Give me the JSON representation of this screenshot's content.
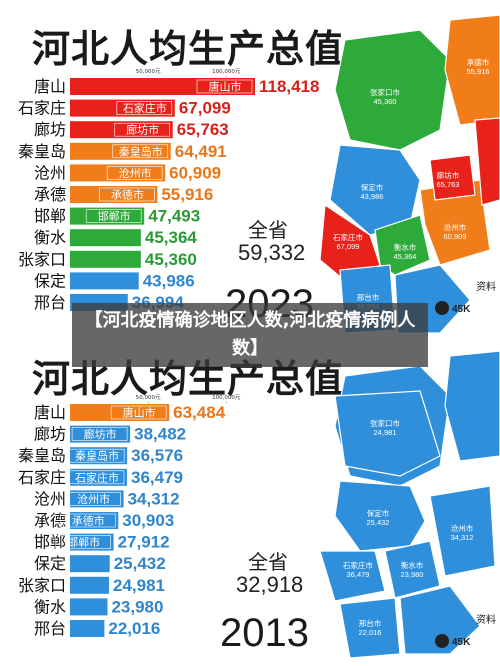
{
  "overlay_title": "【河北疫情确诊地区人数,河北疫情病例人数】",
  "chart_data": [
    {
      "type": "bar",
      "title": "河北人均生产总值",
      "year": "2023",
      "total_label": "全省",
      "total_value": "59,332",
      "scale_labels": [
        "50,000元",
        "100,000元"
      ],
      "categories": [
        "唐山",
        "石家庄",
        "廊坊",
        "秦皇岛",
        "沧州",
        "承德",
        "邯郸",
        "衡水",
        "张家口",
        "保定",
        "邢台"
      ],
      "values": [
        118418,
        67099,
        65763,
        64491,
        60909,
        55916,
        47493,
        45364,
        45360,
        43986,
        36994
      ],
      "value_labels": [
        "118,418",
        "67,099",
        "65,763",
        "64,491",
        "60,909",
        "55,916",
        "47,493",
        "45,364",
        "45,360",
        "43,986",
        "36,994"
      ],
      "bar_labels": [
        "唐山市",
        "石家庄市",
        "廊坊市",
        "秦皇岛市",
        "沧州市",
        "承德市",
        "邯郸市",
        "",
        "",
        "",
        ""
      ],
      "colors": [
        "#e8221b",
        "#e8221b",
        "#e8221b",
        "#f07d1a",
        "#f07d1a",
        "#f07d1a",
        "#2eaa3a",
        "#2eaa3a",
        "#2eaa3a",
        "#2f8fdb",
        "#2f8fdb"
      ],
      "value_colors": [
        "#d4221b",
        "#d4221b",
        "#d4221b",
        "#e8761a",
        "#e8761a",
        "#e8761a",
        "#2a9a35",
        "#2a9a35",
        "#2a9a35",
        "#2f86cf",
        "#2f86cf"
      ],
      "map_labels": [
        {
          "name": "张家口市",
          "value": "45,360"
        },
        {
          "name": "保定市",
          "value": "43,986"
        },
        {
          "name": "石家庄市",
          "value": "67,099"
        },
        {
          "name": "衡水市",
          "value": "45,364"
        },
        {
          "name": "沧州市",
          "value": "60,909"
        },
        {
          "name": "廊坊市",
          "value": "65,763"
        },
        {
          "name": "邢台市",
          "value": "36,994"
        },
        {
          "name": "承德市",
          "value": "55,916"
        }
      ],
      "badge": "45K",
      "badge2": "资料"
    },
    {
      "type": "bar",
      "title": "河北人均生产总值",
      "year": "2013",
      "total_label": "全省",
      "total_value": "32,918",
      "scale_labels": [
        "50,000元",
        "100,000元"
      ],
      "categories": [
        "唐山",
        "廊坊",
        "秦皇岛",
        "石家庄",
        "沧州",
        "承德",
        "邯郸",
        "保定",
        "张家口",
        "衡水",
        "邢台"
      ],
      "values": [
        63484,
        38482,
        36576,
        36479,
        34312,
        30903,
        27912,
        25432,
        24981,
        23980,
        22016
      ],
      "value_labels": [
        "63,484",
        "38,482",
        "36,576",
        "36,479",
        "34,312",
        "30,903",
        "27,912",
        "25,432",
        "24,981",
        "23,980",
        "22,016"
      ],
      "bar_labels": [
        "唐山市",
        "廊坊市",
        "秦皇岛市",
        "石家庄市",
        "沧州市",
        "承德市",
        "邯郸市",
        "",
        "",
        "",
        ""
      ],
      "colors": [
        "#f07d1a",
        "#2f8fdb",
        "#2f8fdb",
        "#2f8fdb",
        "#2f8fdb",
        "#2f8fdb",
        "#2f8fdb",
        "#2f8fdb",
        "#2f8fdb",
        "#2f8fdb",
        "#2f8fdb"
      ],
      "value_colors": [
        "#e8761a",
        "#2f86cf",
        "#2f86cf",
        "#2f86cf",
        "#2f86cf",
        "#2f86cf",
        "#2f86cf",
        "#2f86cf",
        "#2f86cf",
        "#2f86cf",
        "#2f86cf"
      ],
      "map_labels": [
        {
          "name": "张家口市",
          "value": "24,981"
        },
        {
          "name": "保定市",
          "value": "25,432"
        },
        {
          "name": "石家庄市",
          "value": "36,479"
        },
        {
          "name": "衡水市",
          "value": "23,980"
        },
        {
          "name": "沧州市",
          "value": "34,312"
        },
        {
          "name": "邢台市",
          "value": "22,016"
        }
      ],
      "badge": "45K",
      "badge2": "资料"
    }
  ]
}
